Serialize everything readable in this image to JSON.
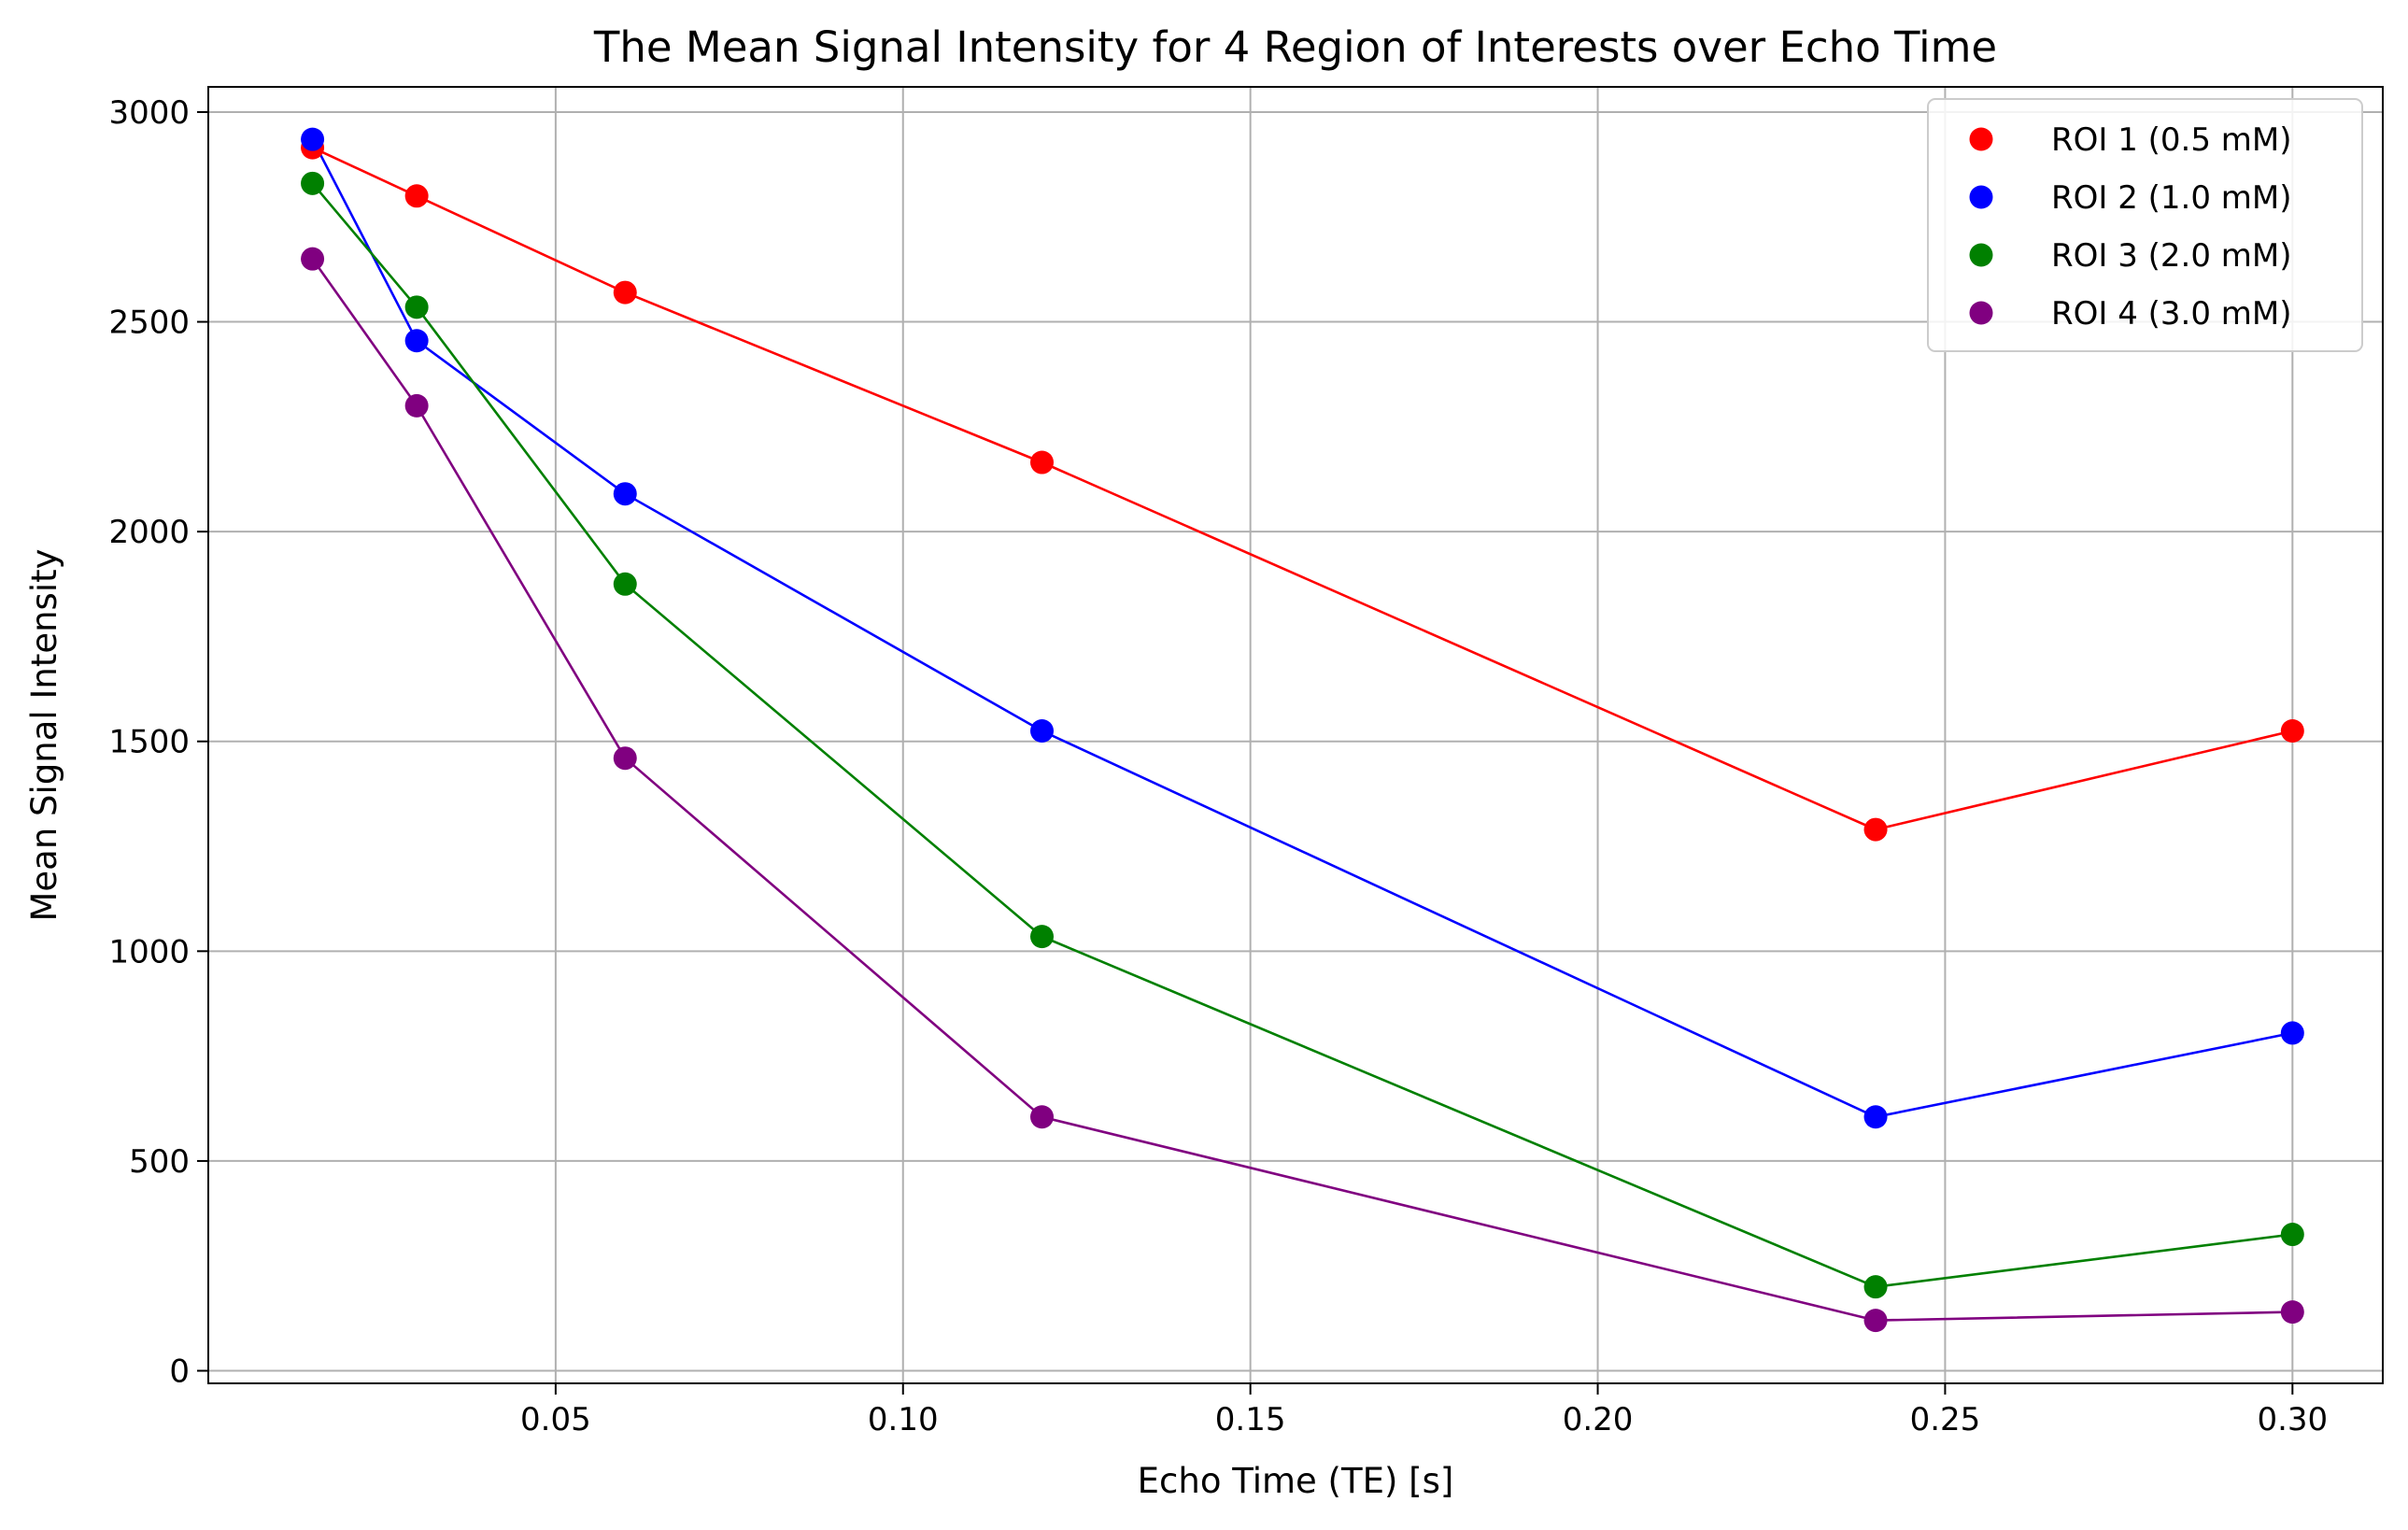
{
  "chart_data": {
    "type": "line",
    "title": "The Mean Signal Intensity for 4 Region of Interests over Echo Time",
    "xlabel": "Echo Time (TE) [s]",
    "ylabel": "Mean Signal Intensity",
    "xlim": [
      0.0,
      0.313
    ],
    "ylim": [
      -30,
      3060
    ],
    "xticks": [
      0.05,
      0.1,
      0.15,
      0.2,
      0.25,
      0.3
    ],
    "xtick_labels": [
      "0.05",
      "0.10",
      "0.15",
      "0.20",
      "0.25",
      "0.30"
    ],
    "yticks": [
      0,
      500,
      1000,
      1500,
      2000,
      2500,
      3000
    ],
    "ytick_labels": [
      "0",
      "500",
      "1000",
      "1500",
      "2000",
      "2500",
      "3000"
    ],
    "grid": true,
    "legend_position": "top-right",
    "x": [
      0.015,
      0.03,
      0.06,
      0.12,
      0.24,
      0.3
    ],
    "series": [
      {
        "name": "ROI 1 (0.5 mM)",
        "color": "#ff0000",
        "values": [
          2915,
          2800,
          2570,
          2165,
          1290,
          1525
        ]
      },
      {
        "name": "ROI 2 (1.0 mM)",
        "color": "#0000ff",
        "values": [
          2935,
          2455,
          2090,
          1525,
          605,
          805
        ]
      },
      {
        "name": "ROI 3 (2.0 mM)",
        "color": "#008000",
        "values": [
          2830,
          2535,
          1875,
          1035,
          200,
          325
        ]
      },
      {
        "name": "ROI 4 (3.0 mM)",
        "color": "#800080",
        "values": [
          2650,
          2300,
          1460,
          605,
          120,
          140
        ]
      }
    ]
  }
}
